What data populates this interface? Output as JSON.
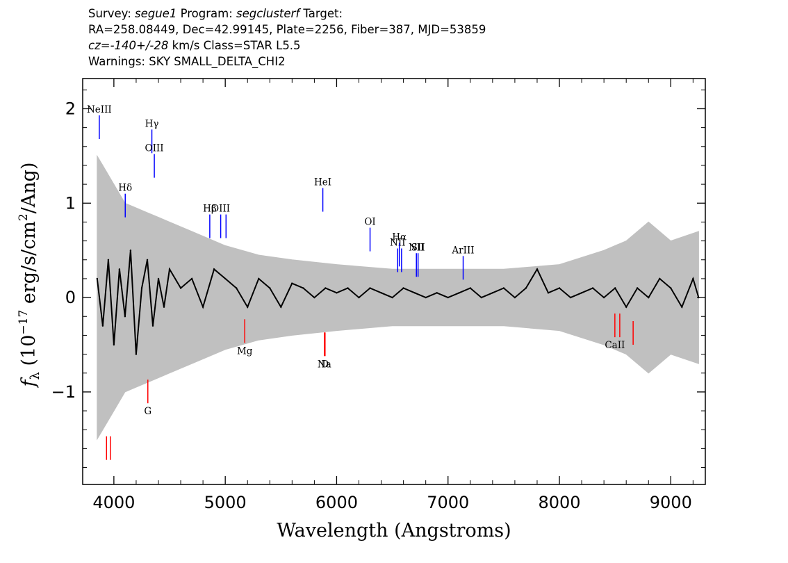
{
  "header": {
    "line1": {
      "survey_label": "Survey: ",
      "survey": "segue1",
      "program_label": " Program: ",
      "program": "segclusterf",
      "target_label": " Target:"
    },
    "line2": "RA=258.08449, Dec=42.99145, Plate=2256, Fiber=387, MJD=53859",
    "line3": {
      "cz": "cz",
      "eq": "=",
      "value": "-140+/-28",
      "rest": " km/s Class=STAR L5.5"
    },
    "line4": "Warnings: SKY SMALL_DELTA_CHI2"
  },
  "colors": {
    "flux": "#000000",
    "error": "#c0c0c0",
    "emission_line": "#0000ff",
    "absorption_line": "#ff0000",
    "axis": "#000000"
  },
  "chart_data": {
    "type": "line",
    "xlabel": "Wavelength (Angstroms)",
    "ylabel": "f_λ (10^-17 erg/s/cm^2/Ang)",
    "xlim": [
      3720,
      9310
    ],
    "ylim": [
      -1.98,
      2.32
    ],
    "x_ticks": [
      4000,
      5000,
      6000,
      7000,
      8000,
      9000
    ],
    "x_tick_labels": [
      "4000",
      "5000",
      "6000",
      "7000",
      "8000",
      "9000"
    ],
    "y_ticks": [
      -1,
      0,
      1,
      2
    ],
    "y_tick_labels": [
      "−1",
      "0",
      "1",
      "2"
    ],
    "series": [
      {
        "role": "flux",
        "x": [
          3850,
          3900,
          3950,
          4000,
          4050,
          4100,
          4150,
          4200,
          4250,
          4300,
          4350,
          4400,
          4450,
          4500,
          4600,
          4700,
          4800,
          4900,
          5000,
          5100,
          5200,
          5300,
          5400,
          5500,
          5600,
          5700,
          5800,
          5900,
          6000,
          6100,
          6200,
          6300,
          6400,
          6500,
          6600,
          6700,
          6800,
          6900,
          7000,
          7100,
          7200,
          7300,
          7400,
          7500,
          7600,
          7700,
          7800,
          7900,
          8000,
          8100,
          8200,
          8300,
          8400,
          8500,
          8600,
          8700,
          8800,
          8900,
          9000,
          9100,
          9200,
          9250
        ],
        "y": [
          0.2,
          -0.3,
          0.4,
          -0.5,
          0.3,
          -0.2,
          0.5,
          -0.6,
          0.1,
          0.4,
          -0.3,
          0.2,
          -0.1,
          0.3,
          0.1,
          0.2,
          -0.1,
          0.3,
          0.2,
          0.1,
          -0.1,
          0.2,
          0.1,
          -0.1,
          0.15,
          0.1,
          0.0,
          0.1,
          0.05,
          0.1,
          0.0,
          0.1,
          0.05,
          0.0,
          0.1,
          0.05,
          0.0,
          0.05,
          0.0,
          0.05,
          0.1,
          0.0,
          0.05,
          0.1,
          0.0,
          0.1,
          0.3,
          0.05,
          0.1,
          0.0,
          0.05,
          0.1,
          0.0,
          0.1,
          -0.1,
          0.1,
          0.0,
          0.2,
          0.1,
          -0.1,
          0.2,
          0.0
        ]
      },
      {
        "role": "error",
        "x": [
          3850,
          3900,
          4000,
          4100,
          4200,
          4300,
          4400,
          4500,
          4700,
          5000,
          5300,
          5600,
          6000,
          6500,
          7000,
          7500,
          8000,
          8400,
          8600,
          8800,
          9000,
          9250
        ],
        "y": [
          1.5,
          1.4,
          1.2,
          1.0,
          0.95,
          0.9,
          0.85,
          0.8,
          0.7,
          0.55,
          0.45,
          0.4,
          0.35,
          0.3,
          0.3,
          0.3,
          0.35,
          0.5,
          0.6,
          0.8,
          0.6,
          0.7
        ]
      }
    ],
    "annotations": [
      {
        "label": "NeIII",
        "x": 3869,
        "y": 1.93,
        "type": "emission"
      },
      {
        "label": "Hγ",
        "x": 4341,
        "y": 1.78,
        "type": "emission"
      },
      {
        "label": "OIII",
        "x": 4363,
        "y": 1.52,
        "type": "emission"
      },
      {
        "label": "Hδ",
        "x": 4102,
        "y": 1.1,
        "type": "emission"
      },
      {
        "label": "Hβ",
        "x": 4861,
        "y": 0.88,
        "type": "emission"
      },
      {
        "label": "OIII",
        "x": 4959,
        "y": 0.88,
        "type": "emission"
      },
      {
        "label": "",
        "x": 5007,
        "y": 0.88,
        "type": "emission"
      },
      {
        "label": "HeI",
        "x": 5876,
        "y": 1.16,
        "type": "emission"
      },
      {
        "label": "OI",
        "x": 6300,
        "y": 0.74,
        "type": "emission"
      },
      {
        "label": "NII",
        "x": 6548,
        "y": 0.52,
        "type": "emission"
      },
      {
        "label": "Hα",
        "x": 6563,
        "y": 0.58,
        "type": "emission"
      },
      {
        "label": "",
        "x": 6583,
        "y": 0.52,
        "type": "emission"
      },
      {
        "label": "NII",
        "x": 6716,
        "y": 0.47,
        "type": "emission"
      },
      {
        "label": "SII",
        "x": 6731,
        "y": 0.47,
        "type": "emission"
      },
      {
        "label": "ArIII",
        "x": 7136,
        "y": 0.44,
        "type": "emission"
      },
      {
        "label": "G",
        "x": 4305,
        "y": -1.12,
        "type": "absorption"
      },
      {
        "label": "Mg",
        "x": 5175,
        "y": -0.48,
        "type": "absorption"
      },
      {
        "label": "Na",
        "x": 5890,
        "y": -0.62,
        "type": "absorption"
      },
      {
        "label": "D",
        "x": 5896,
        "y": -0.62,
        "type": "absorption"
      },
      {
        "label": "CaII",
        "x": 8498,
        "y": -0.42,
        "type": "absorption"
      },
      {
        "label": "",
        "x": 8542,
        "y": -0.42,
        "type": "absorption"
      },
      {
        "label": "",
        "x": 8662,
        "y": -0.5,
        "type": "absorption"
      },
      {
        "label": "",
        "x": 3934,
        "y": -1.72,
        "type": "absorption"
      },
      {
        "label": "",
        "x": 3968,
        "y": -1.72,
        "type": "absorption"
      }
    ]
  }
}
